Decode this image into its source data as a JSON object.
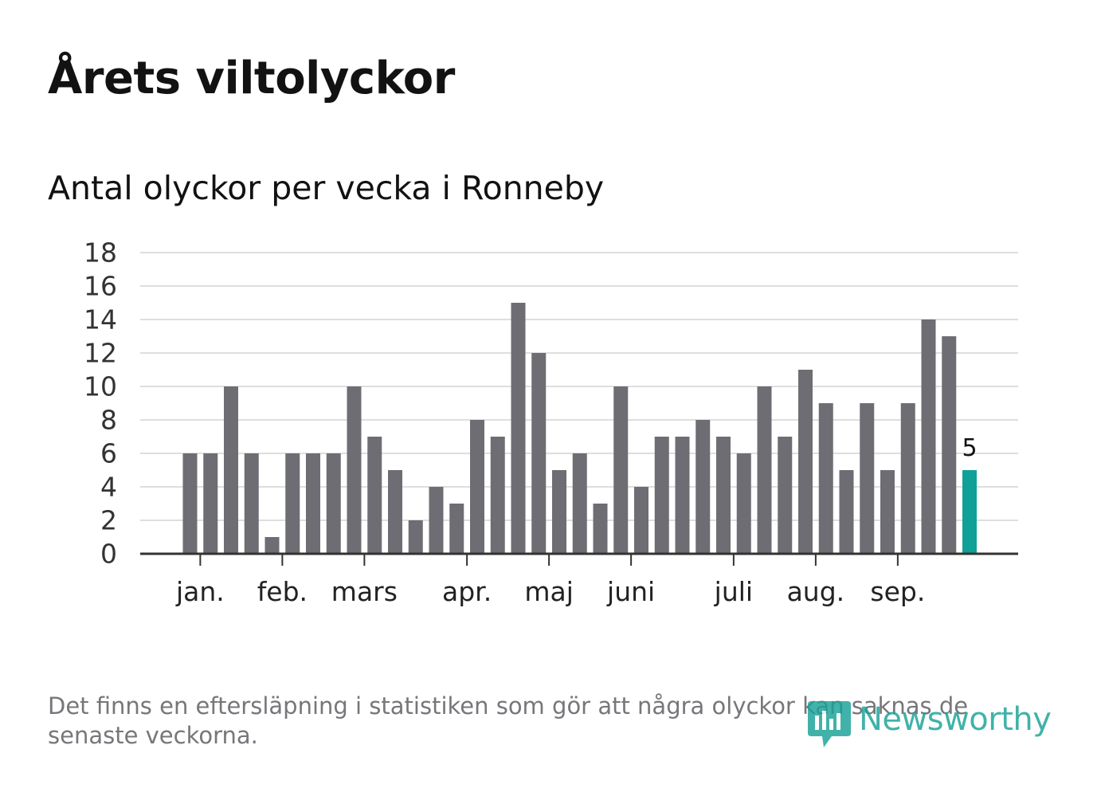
{
  "title": "Årets viltolyckor",
  "subtitle": "Antal olyckor per vecka i Ronneby",
  "footnote": "Det finns en eftersläpning i statistiken som gör att några olyckor kan saknas de senaste veckorna.",
  "logo": {
    "text": "Newsworthy",
    "icon": "newsworthy-logo-icon"
  },
  "colors": {
    "bar": "#6e6d73",
    "highlight": "#0fa197",
    "grid": "#dedede",
    "axis": "#333333",
    "text": "#121212",
    "muted": "#77767b",
    "brand": "#18a297"
  },
  "chart_data": {
    "type": "bar",
    "title": "Årets viltolyckor",
    "subtitle": "Antal olyckor per vecka i Ronneby",
    "xlabel": "",
    "ylabel": "",
    "ylim": [
      0,
      18
    ],
    "yticks": [
      0,
      2,
      4,
      6,
      8,
      10,
      12,
      14,
      16,
      18
    ],
    "grid": true,
    "values": [
      6,
      6,
      10,
      6,
      1,
      6,
      6,
      6,
      10,
      7,
      5,
      2,
      4,
      3,
      8,
      7,
      15,
      12,
      5,
      6,
      3,
      10,
      4,
      7,
      7,
      8,
      7,
      6,
      10,
      7,
      11,
      9,
      5,
      9,
      5,
      9,
      14,
      13,
      5
    ],
    "highlight_index": 38,
    "highlight_label": "5",
    "month_labels": [
      {
        "label": "jan.",
        "position": 0.5
      },
      {
        "label": "feb.",
        "position": 4.5
      },
      {
        "label": "mars",
        "position": 8.5
      },
      {
        "label": "apr.",
        "position": 13.5
      },
      {
        "label": "maj",
        "position": 17.5
      },
      {
        "label": "juni",
        "position": 21.5
      },
      {
        "label": "juli",
        "position": 26.5
      },
      {
        "label": "aug.",
        "position": 30.5
      },
      {
        "label": "sep.",
        "position": 34.5
      }
    ]
  }
}
